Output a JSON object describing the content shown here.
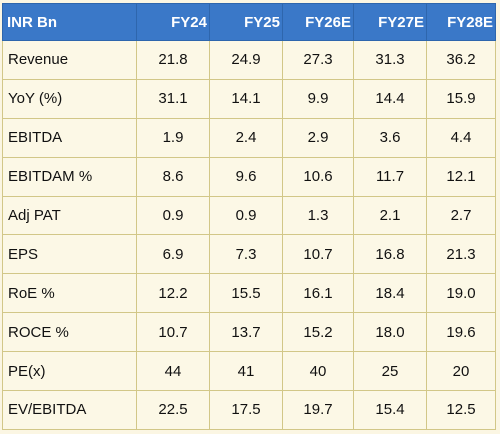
{
  "table": {
    "header": [
      "INR Bn",
      "FY24",
      "FY25",
      "FY26E",
      "FY27E",
      "FY28E"
    ],
    "rows": [
      {
        "label": "Revenue",
        "values": [
          "21.8",
          "24.9",
          "27.3",
          "31.3",
          "36.2"
        ]
      },
      {
        "label": "YoY (%)",
        "values": [
          "31.1",
          "14.1",
          "9.9",
          "14.4",
          "15.9"
        ]
      },
      {
        "label": "EBITDA",
        "values": [
          "1.9",
          "2.4",
          "2.9",
          "3.6",
          "4.4"
        ]
      },
      {
        "label": "EBITDAM %",
        "values": [
          "8.6",
          "9.6",
          "10.6",
          "11.7",
          "12.1"
        ]
      },
      {
        "label": "Adj  PAT",
        "values": [
          "0.9",
          "0.9",
          "1.3",
          "2.1",
          "2.7"
        ]
      },
      {
        "label": "EPS",
        "values": [
          "6.9",
          "7.3",
          "10.7",
          "16.8",
          "21.3"
        ]
      },
      {
        "label": "RoE %",
        "values": [
          "12.2",
          "15.5",
          "16.1",
          "18.4",
          "19.0"
        ]
      },
      {
        "label": "ROCE %",
        "values": [
          "10.7",
          "13.7",
          "15.2",
          "18.0",
          "19.6"
        ]
      },
      {
        "label": "PE(x)",
        "values": [
          "44",
          "41",
          "40",
          "25",
          "20"
        ]
      },
      {
        "label": "EV/EBITDA",
        "values": [
          "22.5",
          "17.5",
          "19.7",
          "15.4",
          "12.5"
        ]
      }
    ]
  },
  "colors": {
    "header_bg": "#3a78c8",
    "header_text": "#ffffff",
    "cell_bg": "#fcf8e6",
    "border": "#d2c788"
  }
}
